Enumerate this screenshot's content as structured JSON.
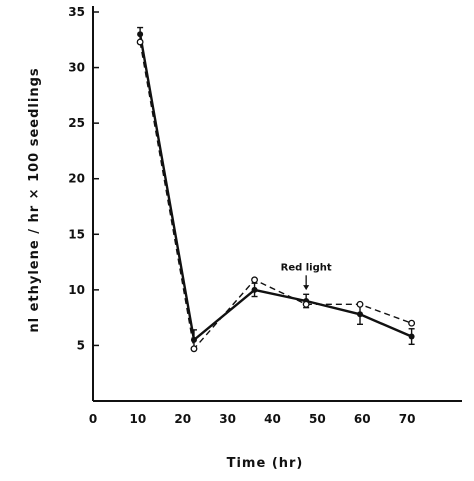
{
  "chart_data": {
    "type": "line",
    "xlabel": "Time (hr)",
    "ylabel": "nl ethylene / hr × 100 seedlings",
    "xlim": [
      0,
      80
    ],
    "ylim": [
      0,
      35
    ],
    "x_ticks": [
      0,
      10,
      20,
      30,
      40,
      50,
      60,
      70
    ],
    "y_ticks": [
      5,
      10,
      15,
      20,
      25,
      30,
      35
    ],
    "grid": false,
    "series": [
      {
        "style": "solid",
        "marker": "filled-circle",
        "color": "#111111",
        "x": [
          10.5,
          22.5,
          36,
          47.5,
          59.5,
          71
        ],
        "y": [
          33,
          5.5,
          10,
          9,
          7.8,
          5.8
        ],
        "err": [
          0.6,
          0.9,
          0.6,
          0.6,
          0.9,
          0.7
        ]
      },
      {
        "style": "dashed",
        "marker": "open-circle",
        "color": "#111111",
        "x": [
          10.5,
          22.5,
          36,
          47.5,
          59.5,
          71
        ],
        "y": [
          32.3,
          4.7,
          10.9,
          8.7,
          8.7,
          7
        ]
      }
    ],
    "annotations": [
      {
        "text": "Red light",
        "x": 47.5,
        "y": 11.4,
        "arrow_to_y": 9.8
      }
    ]
  }
}
